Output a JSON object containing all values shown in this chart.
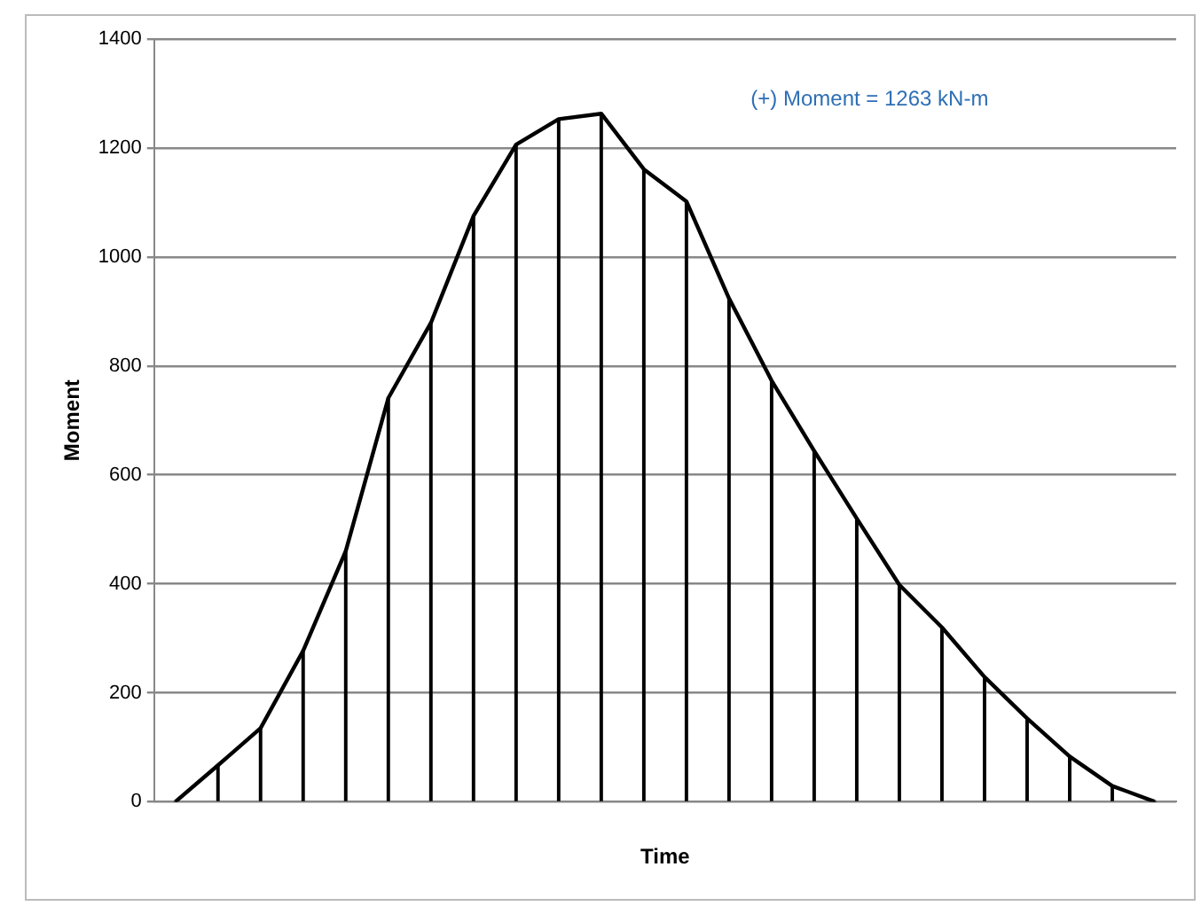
{
  "chart_data": {
    "type": "line",
    "xlabel": "Time",
    "ylabel": "Moment",
    "annotations": [
      "(+) Moment = 1263 kN-m"
    ],
    "categories": [
      null,
      null,
      null,
      null,
      null,
      null,
      null,
      null,
      null,
      null,
      null,
      null,
      null,
      null,
      null,
      null,
      null,
      null,
      null,
      null,
      null,
      null,
      null,
      null
    ],
    "series": [
      {
        "type": "bar",
        "color": "#000000",
        "values": [
          0,
          67,
          135,
          277,
          460,
          741,
          879,
          1075,
          1206,
          1253,
          1263,
          1161,
          1102,
          924,
          773,
          644,
          520,
          398,
          320,
          229,
          153,
          83,
          29,
          0
        ]
      },
      {
        "color": "#000000",
        "values": [
          0,
          67,
          135,
          277,
          460,
          741,
          879,
          1075,
          1206,
          1253,
          1263,
          1161,
          1102,
          924,
          773,
          644,
          520,
          398,
          320,
          229,
          153,
          83,
          29,
          0
        ]
      }
    ],
    "ylim": [
      0,
      1400
    ],
    "yticks": [
      0,
      200,
      400,
      600,
      800,
      1000,
      1200,
      1400
    ],
    "grid": "y",
    "legend": false,
    "marker": "none",
    "line_style": "solid"
  }
}
